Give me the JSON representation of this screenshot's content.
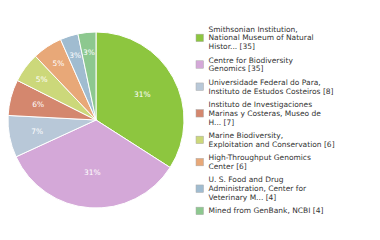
{
  "chart_data": {
    "type": "pie",
    "categories": [
      "Smithsonian Institution,\nNational Museum of Natural\nHistor... [35]",
      "Centre for Biodiversity\nGenomics [35]",
      "Universidade Federal do Para,\nInstituto de Estudos Costeiros [8]",
      "Instituto de Investigaciones\nMarinas y Costeras, Museo de\nH... [7]",
      "Marine Biodiversity,\nExploitation and Conservation [6]",
      "High-Throughput Genomics\nCenter [6]",
      "U. S. Food and Drug\nAdministration, Center for\nVeterinary M... [4]",
      "Mined from GenBank, NCBI [4]"
    ],
    "values": [
      31,
      31,
      7,
      6,
      5,
      5,
      3,
      3
    ],
    "value_labels": [
      "31%",
      "31%",
      "7%",
      "6%",
      "5%",
      "5%",
      "3%",
      "3%"
    ],
    "colors": [
      "#8dc63f",
      "#d4a8d8",
      "#b8c8d8",
      "#d4876e",
      "#ccd87a",
      "#e8a878",
      "#a0bcd0",
      "#8dc88f"
    ],
    "data_labels": true,
    "legend": "right"
  }
}
